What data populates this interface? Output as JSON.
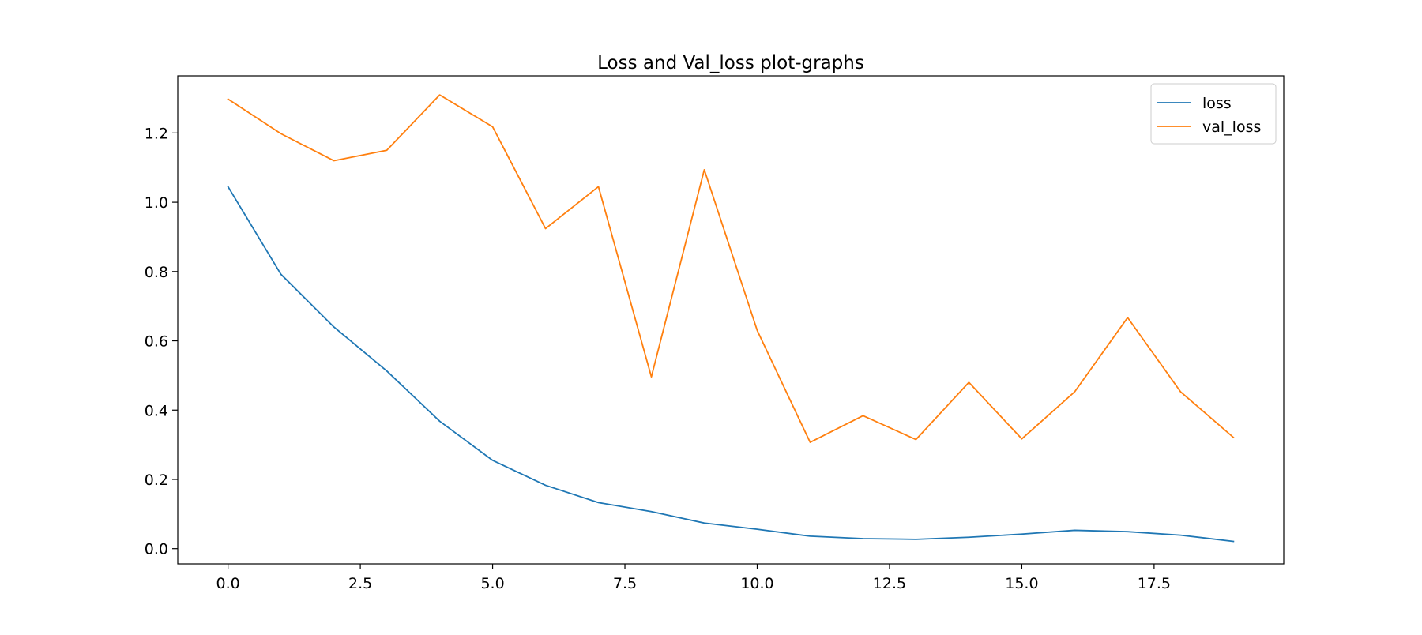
{
  "chart_data": {
    "type": "line",
    "title": "Loss and Val_loss plot-graphs",
    "xlabel": "",
    "ylabel": "",
    "xlim": [
      -0.95,
      19.95
    ],
    "ylim": [
      -0.044,
      1.365
    ],
    "x_ticks": [
      0.0,
      2.5,
      5.0,
      7.5,
      10.0,
      12.5,
      15.0,
      17.5
    ],
    "x_tick_labels": [
      "0.0",
      "2.5",
      "5.0",
      "7.5",
      "10.0",
      "12.5",
      "15.0",
      "17.5"
    ],
    "y_ticks": [
      0.0,
      0.2,
      0.4,
      0.6,
      0.8,
      1.0,
      1.2
    ],
    "y_tick_labels": [
      "0.0",
      "0.2",
      "0.4",
      "0.6",
      "0.8",
      "1.0",
      "1.2"
    ],
    "grid": false,
    "legend_position": "top-right",
    "x": [
      0,
      1,
      2,
      3,
      4,
      5,
      6,
      7,
      8,
      9,
      10,
      11,
      12,
      13,
      14,
      15,
      16,
      17,
      18,
      19
    ],
    "series": [
      {
        "name": "loss",
        "color": "#1f77b4",
        "values": [
          1.045,
          0.792,
          0.64,
          0.513,
          0.368,
          0.255,
          0.183,
          0.133,
          0.107,
          0.074,
          0.056,
          0.036,
          0.029,
          0.027,
          0.033,
          0.042,
          0.053,
          0.049,
          0.039,
          0.021
        ]
      },
      {
        "name": "val_loss",
        "color": "#ff7f0e",
        "values": [
          1.298,
          1.198,
          1.12,
          1.15,
          1.31,
          1.218,
          0.924,
          1.045,
          0.496,
          1.094,
          0.63,
          0.307,
          0.384,
          0.315,
          0.48,
          0.317,
          0.453,
          0.667,
          0.453,
          0.321
        ]
      }
    ]
  }
}
